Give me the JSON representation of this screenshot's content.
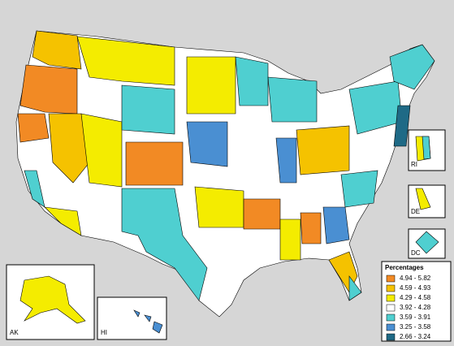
{
  "legend": {
    "title": "Percentages",
    "items": [
      {
        "label": "4.94 - 5.82",
        "color": "#f28a24"
      },
      {
        "label": "4.59 - 4.93",
        "color": "#f5c200"
      },
      {
        "label": "4.29 - 4.58",
        "color": "#f4ec00"
      },
      {
        "label": "3.92 - 4.28",
        "color": "#ffffff"
      },
      {
        "label": "3.59 - 3.91",
        "color": "#4fcfd0"
      },
      {
        "label": "3.25 - 3.58",
        "color": "#4a8fd2"
      },
      {
        "label": "2.66 - 3.24",
        "color": "#1f6a86"
      }
    ]
  },
  "insets": {
    "alaska": "AK",
    "hawaii": "HI",
    "rhode_island": "RI",
    "delaware": "DE",
    "district_of_columbia": "DC"
  }
}
